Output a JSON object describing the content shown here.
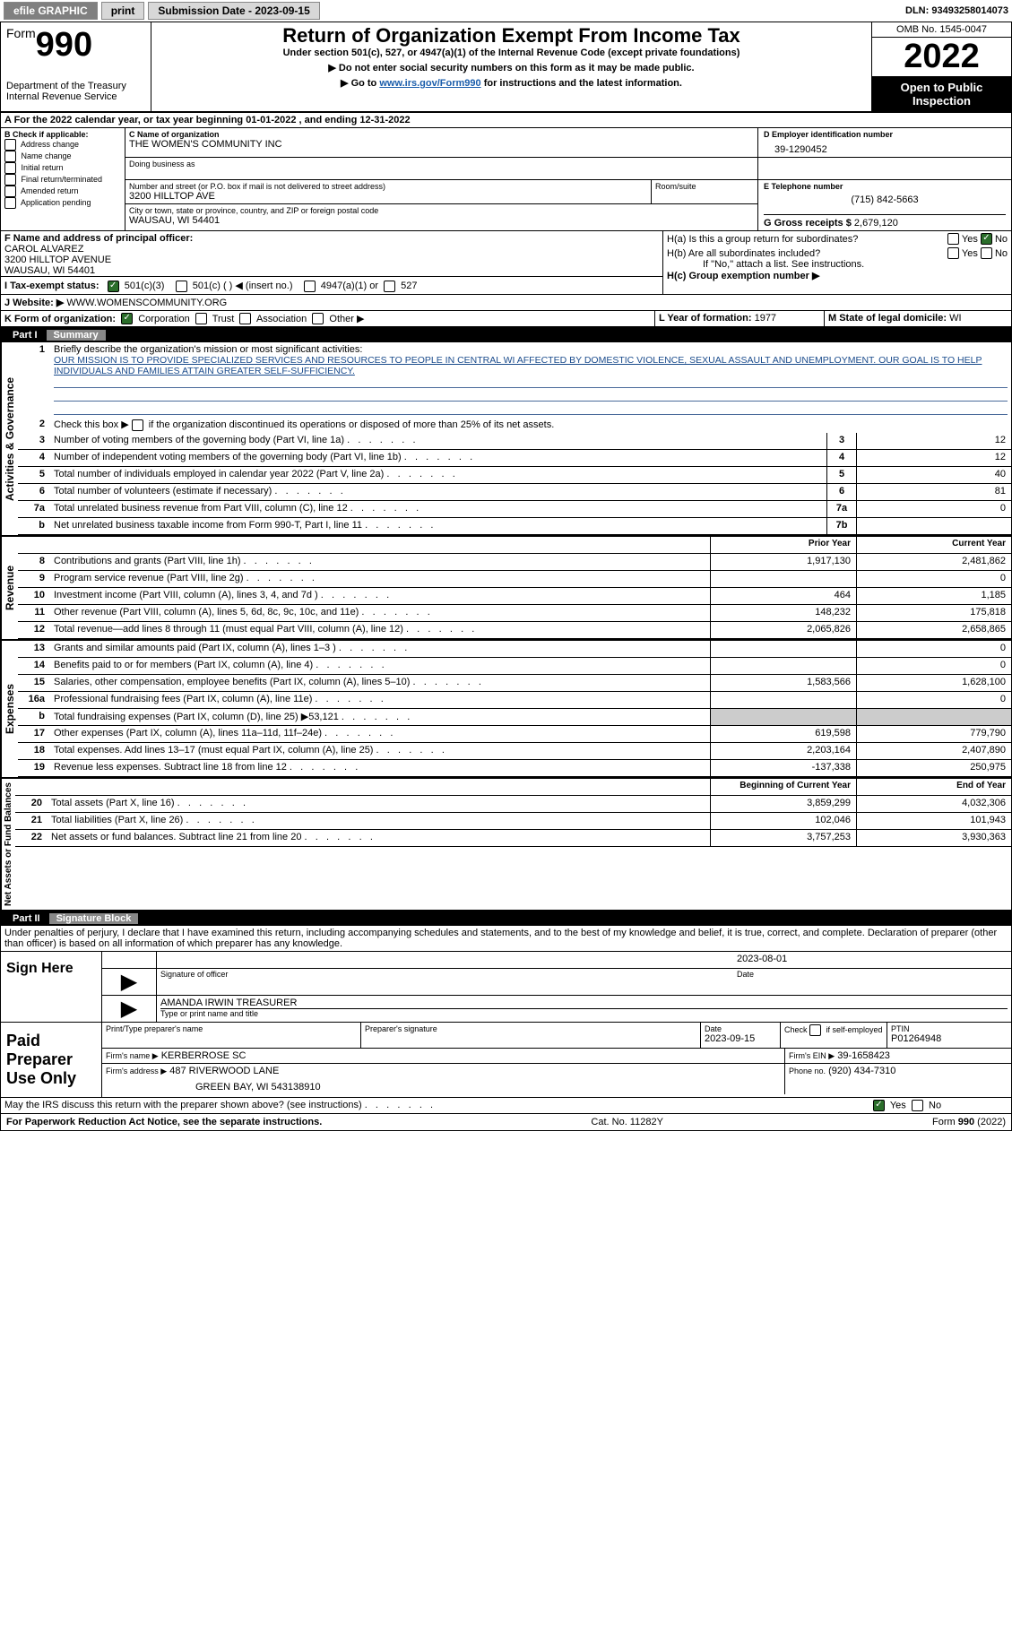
{
  "topbar": {
    "efile": "efile GRAPHIC",
    "print": "print",
    "sub_date_label": "Submission Date - 2023-09-15",
    "dln_label": "DLN: 93493258014073"
  },
  "header": {
    "form_label": "Form",
    "form_no": "990",
    "dept": "Department of the Treasury\nInternal Revenue Service",
    "title": "Return of Organization Exempt From Income Tax",
    "sub1": "Under section 501(c), 527, or 4947(a)(1) of the Internal Revenue Code (except private foundations)",
    "sub2": "▶ Do not enter social security numbers on this form as it may be made public.",
    "sub3_prefix": "▶ Go to ",
    "sub3_link": "www.irs.gov/Form990",
    "sub3_suffix": " for instructions and the latest information.",
    "omb": "OMB No. 1545-0047",
    "year": "2022",
    "open": "Open to Public Inspection"
  },
  "sectionA": {
    "a_label": "A For the 2022 calendar year, or tax year beginning 01-01-2022   , and ending 12-31-2022",
    "b_label": "B Check if applicable:",
    "b_opts": [
      "Address change",
      "Name change",
      "Initial return",
      "Final return/terminated",
      "Amended return",
      "Application pending"
    ],
    "c_label": "C Name of organization",
    "c_name": "THE WOMEN'S COMMUNITY INC",
    "dba_label": "Doing business as",
    "addr_label": "Number and street (or P.O. box if mail is not delivered to street address)",
    "room_label": "Room/suite",
    "addr": "3200 HILLTOP AVE",
    "city_label": "City or town, state or province, country, and ZIP or foreign postal code",
    "city": "WAUSAU, WI  54401",
    "d_label": "D Employer identification number",
    "d_val": "39-1290452",
    "e_label": "E Telephone number",
    "e_val": "(715) 842-5663",
    "g_label": "G Gross receipts $",
    "g_val": "2,679,120",
    "f_label": "F  Name and address of principal officer:",
    "f_name": "CAROL ALVAREZ",
    "f_addr1": "3200 HILLTOP AVENUE",
    "f_addr2": "WAUSAU, WI  54401",
    "ha_label": "H(a)  Is this a group return for subordinates?",
    "hb_label": "H(b)  Are all subordinates included?",
    "h_note": "If \"No,\" attach a list. See instructions.",
    "hc_label": "H(c)  Group exemption number ▶",
    "yes": "Yes",
    "no": "No",
    "i_label": "I    Tax-exempt status:",
    "i_501c3": "501(c)(3)",
    "i_501c": "501(c) (  ) ◀ (insert no.)",
    "i_4947": "4947(a)(1) or",
    "i_527": "527",
    "j_label": "J   Website: ▶ ",
    "j_val": "WWW.WOMENSCOMMUNITY.ORG",
    "k_label": "K Form of organization:",
    "k_corp": "Corporation",
    "k_trust": "Trust",
    "k_assoc": "Association",
    "k_other": "Other ▶",
    "l_label": "L Year of formation:",
    "l_val": "1977",
    "m_label": "M State of legal domicile:",
    "m_val": "WI"
  },
  "part1": {
    "label": "Part I",
    "title": "Summary",
    "briefly": "Briefly describe the organization's mission or most significant activities:",
    "mission": "OUR MISSION IS TO PROVIDE SPECIALIZED SERVICES AND RESOURCES TO PEOPLE IN CENTRAL WI AFFECTED BY DOMESTIC VIOLENCE, SEXUAL ASSAULT AND UNEMPLOYMENT. OUR GOAL IS TO HELP INDIVIDUALS AND FAMILIES ATTAIN GREATER SELF-SUFFICIENCY.",
    "line2": "Check this box ▶       if the organization discontinued its operations or disposed of more than 25% of its net assets.",
    "vert": {
      "gov": "Activities & Governance",
      "rev": "Revenue",
      "exp": "Expenses",
      "net": "Net Assets or Fund Balances"
    },
    "rows": [
      {
        "no": "3",
        "desc": "Number of voting members of the governing body (Part VI, line 1a)",
        "box": "3",
        "v2": "12"
      },
      {
        "no": "4",
        "desc": "Number of independent voting members of the governing body (Part VI, line 1b)",
        "box": "4",
        "v2": "12"
      },
      {
        "no": "5",
        "desc": "Total number of individuals employed in calendar year 2022 (Part V, line 2a)",
        "box": "5",
        "v2": "40"
      },
      {
        "no": "6",
        "desc": "Total number of volunteers (estimate if necessary)",
        "box": "6",
        "v2": "81"
      },
      {
        "no": "7a",
        "desc": "Total unrelated business revenue from Part VIII, column (C), line 12",
        "box": "7a",
        "v2": "0"
      },
      {
        "no": "b",
        "desc": "Net unrelated business taxable income from Form 990-T, Part I, line 11",
        "box": "7b",
        "v2": ""
      }
    ],
    "prior_year": "Prior Year",
    "current_year": "Current Year",
    "revenue_rows": [
      {
        "no": "8",
        "desc": "Contributions and grants (Part VIII, line 1h)",
        "v1": "1,917,130",
        "v2": "2,481,862"
      },
      {
        "no": "9",
        "desc": "Program service revenue (Part VIII, line 2g)",
        "v1": "",
        "v2": "0"
      },
      {
        "no": "10",
        "desc": "Investment income (Part VIII, column (A), lines 3, 4, and 7d )",
        "v1": "464",
        "v2": "1,185"
      },
      {
        "no": "11",
        "desc": "Other revenue (Part VIII, column (A), lines 5, 6d, 8c, 9c, 10c, and 11e)",
        "v1": "148,232",
        "v2": "175,818"
      },
      {
        "no": "12",
        "desc": "Total revenue—add lines 8 through 11 (must equal Part VIII, column (A), line 12)",
        "v1": "2,065,826",
        "v2": "2,658,865"
      }
    ],
    "expense_rows": [
      {
        "no": "13",
        "desc": "Grants and similar amounts paid (Part IX, column (A), lines 1–3 )",
        "v1": "",
        "v2": "0"
      },
      {
        "no": "14",
        "desc": "Benefits paid to or for members (Part IX, column (A), line 4)",
        "v1": "",
        "v2": "0"
      },
      {
        "no": "15",
        "desc": "Salaries, other compensation, employee benefits (Part IX, column (A), lines 5–10)",
        "v1": "1,583,566",
        "v2": "1,628,100"
      },
      {
        "no": "16a",
        "desc": "Professional fundraising fees (Part IX, column (A), line 11e)",
        "v1": "",
        "v2": "0"
      },
      {
        "no": "b",
        "desc": "Total fundraising expenses (Part IX, column (D), line 25) ▶53,121",
        "v1": "shaded",
        "v2": "shaded"
      },
      {
        "no": "17",
        "desc": "Other expenses (Part IX, column (A), lines 11a–11d, 11f–24e)",
        "v1": "619,598",
        "v2": "779,790"
      },
      {
        "no": "18",
        "desc": "Total expenses. Add lines 13–17 (must equal Part IX, column (A), line 25)",
        "v1": "2,203,164",
        "v2": "2,407,890"
      },
      {
        "no": "19",
        "desc": "Revenue less expenses. Subtract line 18 from line 12",
        "v1": "-137,338",
        "v2": "250,975"
      }
    ],
    "begin_year": "Beginning of Current Year",
    "end_year": "End of Year",
    "net_rows": [
      {
        "no": "20",
        "desc": "Total assets (Part X, line 16)",
        "v1": "3,859,299",
        "v2": "4,032,306"
      },
      {
        "no": "21",
        "desc": "Total liabilities (Part X, line 26)",
        "v1": "102,046",
        "v2": "101,943"
      },
      {
        "no": "22",
        "desc": "Net assets or fund balances. Subtract line 21 from line 20",
        "v1": "3,757,253",
        "v2": "3,930,363"
      }
    ]
  },
  "part2": {
    "label": "Part II",
    "title": "Signature Block",
    "declaration": "Under penalties of perjury, I declare that I have examined this return, including accompanying schedules and statements, and to the best of my knowledge and belief, it is true, correct, and complete. Declaration of preparer (other than officer) is based on all information of which preparer has any knowledge.",
    "sign_here": "Sign Here",
    "sig_officer": "Signature of officer",
    "sig_date": "Date",
    "sig_date_val": "2023-08-01",
    "officer_name": "AMANDA IRWIN  TREASURER",
    "type_name": "Type or print name and title",
    "paid_prep": "Paid Preparer Use Only",
    "prep_name_label": "Print/Type preparer's name",
    "prep_sig_label": "Preparer's signature",
    "date_label": "Date",
    "date_val": "2023-09-15",
    "check_self": "Check        if self-employed",
    "ptin_label": "PTIN",
    "ptin_val": "P01264948",
    "firm_name_label": "Firm's name    ▶",
    "firm_name": "KERBERROSE SC",
    "firm_ein_label": "Firm's EIN ▶",
    "firm_ein": "39-1658423",
    "firm_addr_label": "Firm's address ▶",
    "firm_addr": "487 RIVERWOOD LANE",
    "firm_city": "GREEN BAY, WI  543138910",
    "phone_label": "Phone no.",
    "phone_val": "(920) 434-7310",
    "discuss": "May the IRS discuss this return with the preparer shown above? (see instructions)"
  },
  "footer": {
    "paperwork": "For Paperwork Reduction Act Notice, see the separate instructions.",
    "cat": "Cat. No. 11282Y",
    "formyear": "Form 990 (2022)"
  }
}
